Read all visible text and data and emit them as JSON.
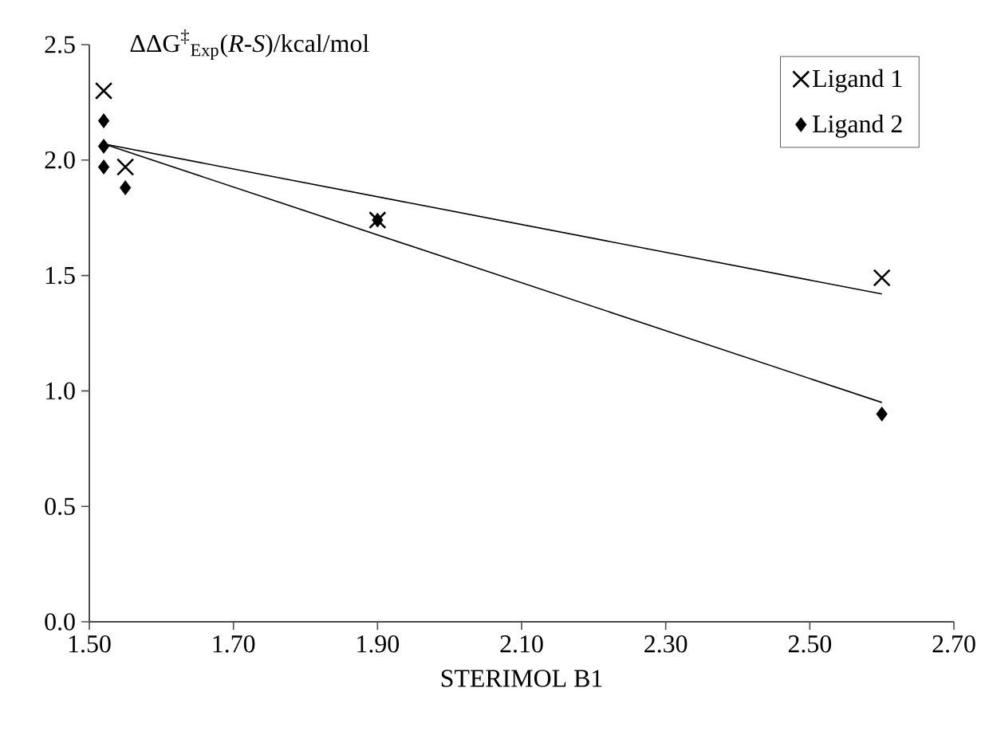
{
  "chart_data": {
    "type": "scatter",
    "ylabel": "ΔΔG$^{‡}$$_{Exp}$(*R*-*S*)/kcal/mol",
    "xlabel": "STERIMOL B1",
    "series": [
      {
        "name": "Ligand 1",
        "marker": "cross",
        "color": "#000000",
        "x": [
          1.52,
          1.55,
          1.9,
          2.6
        ],
        "values": [
          2.3,
          1.97,
          1.74,
          1.49
        ]
      },
      {
        "name": "Ligand 2",
        "marker": "diamond",
        "color": "#000000",
        "x": [
          1.52,
          1.52,
          1.52,
          1.55,
          1.9,
          2.6
        ],
        "values": [
          2.17,
          2.06,
          1.97,
          1.88,
          1.74,
          0.9
        ]
      },
      {
        "type": "line",
        "marker": "none",
        "color": "#000000",
        "x": [
          1.52,
          2.6
        ],
        "values": [
          2.07,
          1.42
        ]
      },
      {
        "type": "line",
        "marker": "none",
        "color": "#000000",
        "x": [
          1.52,
          2.6
        ],
        "values": [
          2.07,
          0.95
        ]
      }
    ],
    "xlim": [
      1.5,
      2.7
    ],
    "xticks": [
      {
        "value": 1.5,
        "label": "1.50"
      },
      {
        "value": 1.7,
        "label": "1.70"
      },
      {
        "value": 1.9,
        "label": "1.90"
      },
      {
        "value": 2.1,
        "label": "2.10"
      },
      {
        "value": 2.3,
        "label": "2.30"
      },
      {
        "value": 2.5,
        "label": "2.50"
      },
      {
        "value": 2.7,
        "label": "2.70"
      }
    ],
    "ylim": [
      0,
      2.5
    ],
    "yticks": [
      {
        "value": 0,
        "label": "0.0"
      },
      {
        "value": 0.5,
        "label": "0.5"
      },
      {
        "value": 1.0,
        "label": "1.0"
      },
      {
        "value": 1.5,
        "label": "1.5"
      },
      {
        "value": 2.0,
        "label": "2.0"
      },
      {
        "value": 2.5,
        "label": "2.5"
      }
    ],
    "grid": false,
    "legend": "top right"
  }
}
